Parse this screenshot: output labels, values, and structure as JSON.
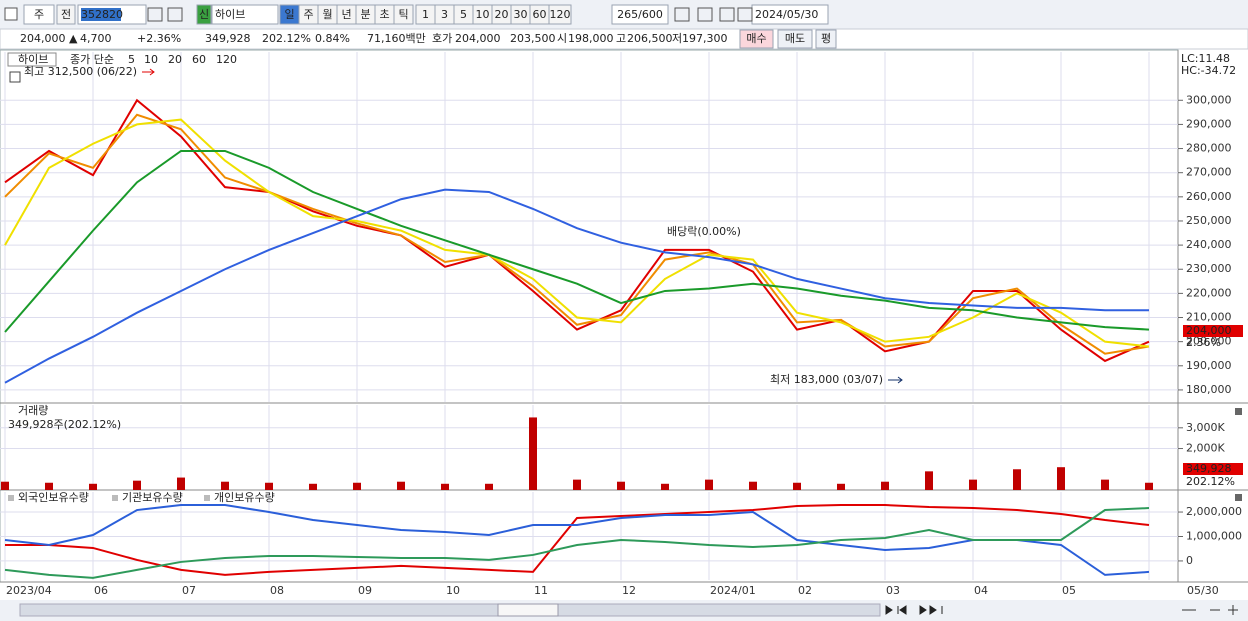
{
  "toolbar": {
    "market": "주",
    "view": "전",
    "code": "352820",
    "new": "신",
    "name": "하이브",
    "periods": [
      "일",
      "주",
      "월",
      "년",
      "분",
      "초",
      "틱"
    ],
    "minutes": [
      "1",
      "3",
      "5",
      "10",
      "20",
      "30",
      "60",
      "120"
    ],
    "count": "265/600",
    "date": "2024/05/30"
  },
  "quote": {
    "price": "204,000 ▲",
    "change": "4,700",
    "change_pct": "+2.36%",
    "volume": "349,928",
    "volume_ratio": "202.12%",
    "turnover": "0.84%",
    "amount": "71,160백만",
    "bid_label": "호가",
    "ask": "204,000",
    "bid": "203,500",
    "open_label": "시",
    "open": "198,000",
    "high_label": "고",
    "high": "206,500",
    "low_label": "저",
    "low": "197,300",
    "buy": "매수",
    "sell": "매도",
    "eval": "평"
  },
  "chart_data": [
    {
      "type": "line",
      "title": "하이브",
      "subtitle": "종가 단순",
      "categories": [
        "2023/04",
        null,
        "06",
        null,
        "07",
        null,
        "08",
        null,
        "09",
        null,
        "10",
        null,
        "11",
        null,
        "12",
        null,
        "2024/01",
        null,
        "02",
        null,
        "03",
        null,
        "04",
        null,
        "05",
        null,
        "05/30"
      ],
      "series": [
        {
          "name": "5",
          "color": "#e00000",
          "values": [
            266000,
            279000,
            269000,
            300000,
            285000,
            264000,
            262000,
            254000,
            248000,
            244000,
            231000,
            236000,
            221000,
            205000,
            213000,
            238000,
            238000,
            229000,
            205000,
            209000,
            196000,
            200000,
            221000,
            221000,
            205000,
            192000,
            200000
          ]
        },
        {
          "name": "10",
          "color": "#f08c00",
          "values": [
            260000,
            278000,
            272000,
            294000,
            288000,
            268000,
            262000,
            255000,
            249000,
            244000,
            233000,
            236000,
            223000,
            207000,
            211000,
            234000,
            237000,
            232000,
            208000,
            209000,
            198000,
            200000,
            218000,
            222000,
            207000,
            195000,
            198000
          ]
        },
        {
          "name": "20",
          "color": "#f0e000",
          "values": [
            240000,
            272000,
            282000,
            290000,
            292000,
            275000,
            262000,
            252000,
            250000,
            246000,
            238000,
            236000,
            226000,
            210000,
            208000,
            226000,
            236000,
            234000,
            212000,
            208000,
            200000,
            202000,
            210000,
            220000,
            212000,
            200000,
            198000
          ]
        },
        {
          "name": "60",
          "color": "#1a9a2a",
          "values": [
            204000,
            225000,
            246000,
            266000,
            279000,
            279000,
            272000,
            262000,
            255000,
            248000,
            242000,
            236000,
            230000,
            224000,
            216000,
            221000,
            222000,
            224000,
            222000,
            219000,
            217000,
            214000,
            213000,
            210000,
            208000,
            206000,
            205000
          ]
        },
        {
          "name": "120",
          "color": "#3060e0",
          "values": [
            183000,
            193000,
            202000,
            212000,
            221000,
            230000,
            238000,
            245000,
            252000,
            259000,
            263000,
            262000,
            255000,
            247000,
            241000,
            237000,
            235000,
            232000,
            226000,
            222000,
            218000,
            216000,
            215000,
            214000,
            214000,
            213000,
            213000
          ]
        }
      ],
      "ylim": [
        175000,
        320000
      ],
      "yticks": [
        {
          "value": 180000,
          "label": "180,000"
        },
        {
          "value": 190000,
          "label": "190,000"
        },
        {
          "value": 200000,
          "label": "200,000"
        },
        {
          "value": 210000,
          "label": "210,000"
        },
        {
          "value": 220000,
          "label": "220,000"
        },
        {
          "value": 230000,
          "label": "230,000"
        },
        {
          "value": 240000,
          "label": "240,000"
        },
        {
          "value": 250000,
          "label": "250,000"
        },
        {
          "value": 260000,
          "label": "260,000"
        },
        {
          "value": 270000,
          "label": "270,000"
        },
        {
          "value": 280000,
          "label": "280,000"
        },
        {
          "value": 290000,
          "label": "290,000"
        },
        {
          "value": 300000,
          "label": "300,000"
        }
      ],
      "grid": true,
      "annotations": {
        "high": "최고 312,500 (06/22)",
        "low": "최저 183,000 (03/07)",
        "dividend": "배당락(0.00%)",
        "lc": "LC:11.48",
        "hc": "HC:-34.72",
        "last": "204,000",
        "last_change": "2.36%"
      }
    },
    {
      "type": "bar",
      "title": "거래량",
      "subtitle": "349,928주(202.12%)",
      "color": "#c00000",
      "values": [
        400000,
        350000,
        300000,
        450000,
        600000,
        400000,
        350000,
        300000,
        350000,
        400000,
        300000,
        300000,
        3500000,
        500000,
        400000,
        300000,
        500000,
        400000,
        350000,
        300000,
        400000,
        900000,
        500000,
        1000000,
        1100000,
        500000,
        349928
      ],
      "ylim": [
        0,
        4100000
      ],
      "yticks": [
        {
          "value": 2000000,
          "label": "2,000K"
        },
        {
          "value": 3000000,
          "label": "3,000K"
        }
      ],
      "grid": true,
      "annotations": {
        "last": "349,928",
        "last_change": "202.12%"
      }
    },
    {
      "type": "line",
      "series": [
        {
          "name": "외국인보유수량",
          "color": "#e00000",
          "values": [
            653000,
            653000,
            531000,
            41000,
            -367000,
            -571000,
            -449000,
            -367000,
            -286000,
            -204000,
            -286000,
            -367000,
            -449000,
            1755000,
            1837000,
            1918000,
            2000000,
            2082000,
            2245000,
            2286000,
            2286000,
            2204000,
            2163000,
            2082000,
            1918000,
            1673000,
            1469000
          ]
        },
        {
          "name": "기관보유수량",
          "color": "#2b5fd9",
          "values": [
            857000,
            653000,
            1061000,
            2082000,
            2286000,
            2286000,
            2000000,
            1673000,
            1469000,
            1265000,
            1184000,
            1061000,
            1469000,
            1469000,
            1755000,
            1878000,
            1878000,
            2000000,
            857000,
            653000,
            449000,
            531000,
            857000,
            857000,
            653000,
            -571000,
            -449000
          ]
        },
        {
          "name": "개인보유수량",
          "color": "#2e9a5a",
          "values": [
            -367000,
            -571000,
            -694000,
            -367000,
            -41000,
            122000,
            204000,
            204000,
            163000,
            122000,
            122000,
            41000,
            245000,
            653000,
            857000,
            776000,
            653000,
            571000,
            653000,
            857000,
            939000,
            1265000,
            857000,
            857000,
            857000,
            2082000,
            2163000
          ]
        }
      ],
      "ylim": [
        -780000,
        2820000
      ],
      "yticks": [
        0,
        {
          "value": 1000000,
          "label": "1,000,000"
        },
        {
          "value": 2000000,
          "label": "2,000,000"
        }
      ],
      "grid": true
    }
  ]
}
